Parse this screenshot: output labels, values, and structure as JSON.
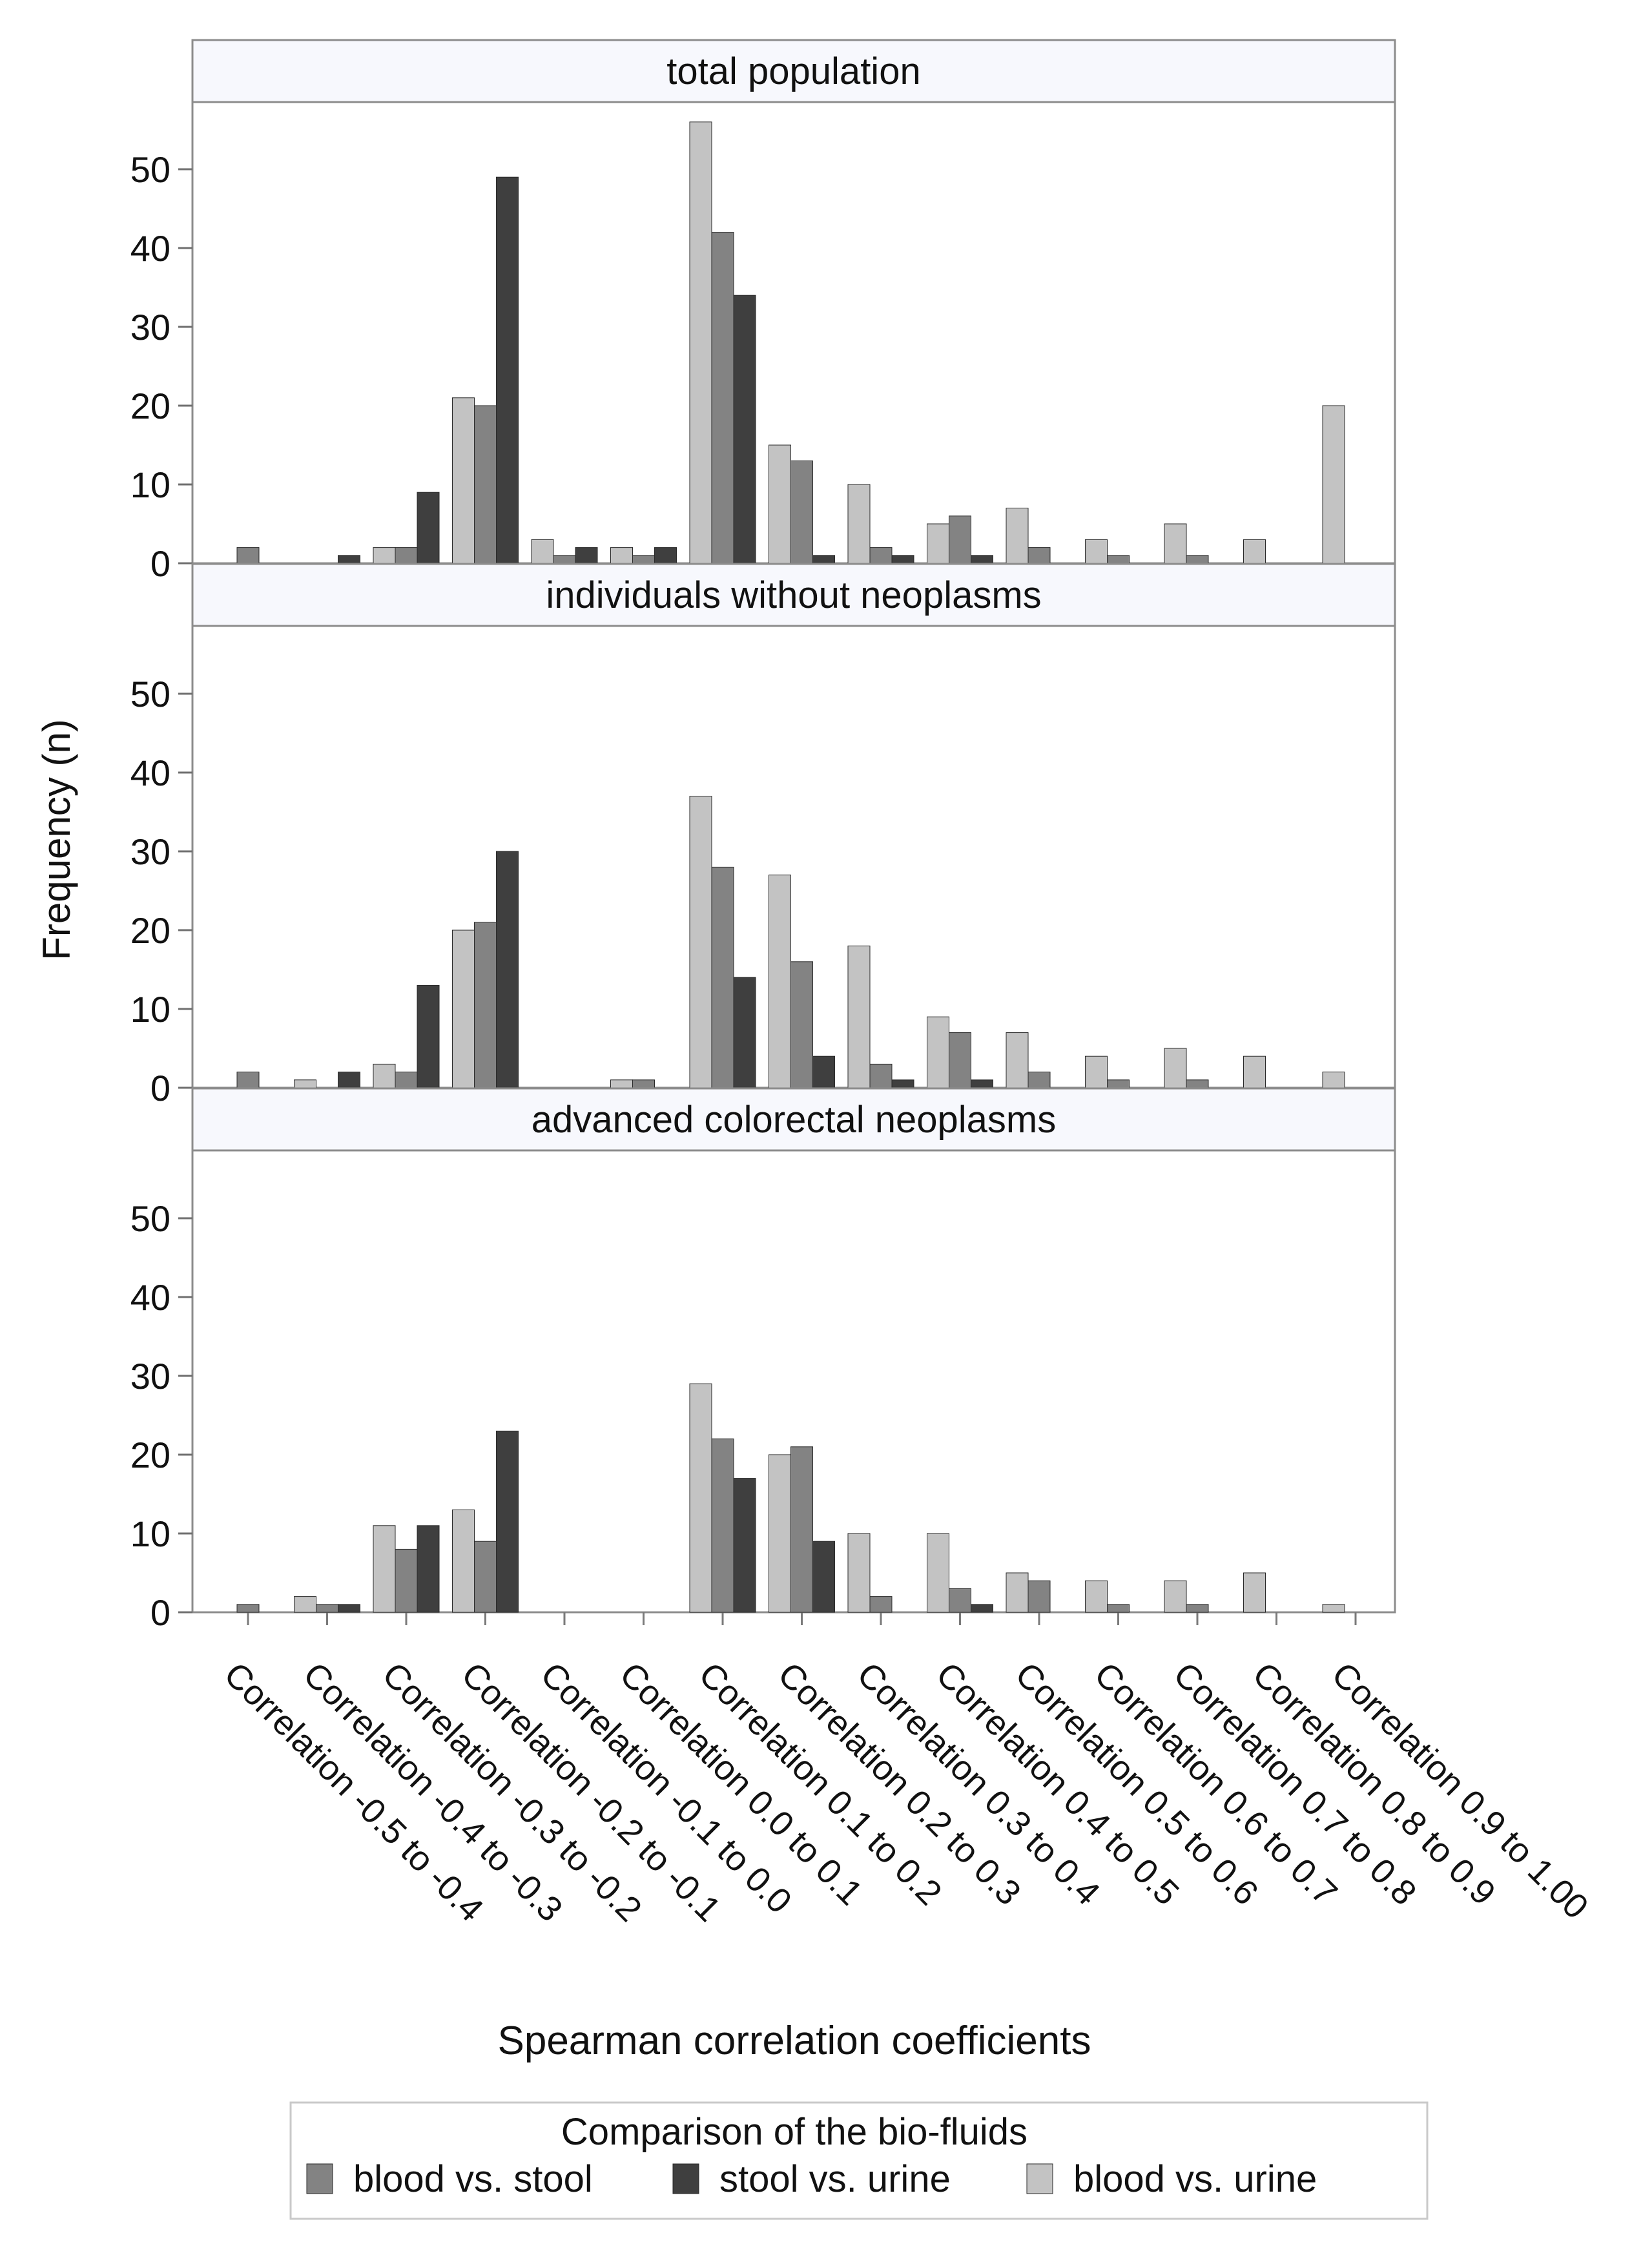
{
  "chart_data": {
    "type": "bar",
    "xlabel": "Spearman correlation coefficients",
    "ylabel": "Frequency (n)",
    "ylim": [
      0,
      58
    ],
    "yticks": [
      0,
      10,
      20,
      30,
      40,
      50
    ],
    "categories": [
      "Correlation -0.5 to -0.4",
      "Correlation -0.4 to -0.3",
      "Correlation -0.3 to -0.2",
      "Correlation -0.2 to -0.1",
      "Correlation -0.1 to 0.0",
      "Correlation 0.0 to 0.1",
      "Correlation 0.1 to 0.2",
      "Correlation 0.2 to 0.3",
      "Correlation 0.3 to 0.4",
      "Correlation 0.4 to 0.5",
      "Correlation 0.5 to 0.6",
      "Correlation 0.6 to 0.7",
      "Correlation 0.7 to 0.8",
      "Correlation 0.8 to 0.9",
      "Correlation 0.9 to 1.00"
    ],
    "series_order": [
      "blood vs. urine",
      "blood vs. stool",
      "stool vs. urine"
    ],
    "colors": {
      "blood vs. urine": "#c3c3c3",
      "blood vs. stool": "#838383",
      "stool vs. urine": "#3f3f3f"
    },
    "legend": {
      "title": "Comparison of the bio-fluids",
      "entries": [
        "blood vs. stool",
        "stool vs. urine",
        "blood vs. urine"
      ],
      "placement": "bottom-center"
    },
    "panels": [
      {
        "title": "total population",
        "series": [
          {
            "name": "blood vs. urine",
            "values": [
              0,
              0,
              2,
              21,
              3,
              2,
              56,
              15,
              10,
              5,
              7,
              3,
              5,
              3,
              20
            ]
          },
          {
            "name": "blood vs. stool",
            "values": [
              2,
              0,
              2,
              20,
              1,
              1,
              42,
              13,
              2,
              6,
              2,
              1,
              1,
              0,
              0
            ]
          },
          {
            "name": "stool vs. urine",
            "values": [
              0,
              1,
              9,
              49,
              2,
              2,
              34,
              1,
              1,
              1,
              0,
              0,
              0,
              0,
              0
            ]
          }
        ]
      },
      {
        "title": "individuals without neoplasms",
        "series": [
          {
            "name": "blood vs. urine",
            "values": [
              0,
              1,
              3,
              20,
              0,
              1,
              37,
              27,
              18,
              9,
              7,
              4,
              5,
              4,
              2
            ]
          },
          {
            "name": "blood vs. stool",
            "values": [
              2,
              0,
              2,
              21,
              0,
              1,
              28,
              16,
              3,
              7,
              2,
              1,
              1,
              0,
              0
            ]
          },
          {
            "name": "stool vs. urine",
            "values": [
              0,
              2,
              13,
              30,
              0,
              0,
              14,
              4,
              1,
              1,
              0,
              0,
              0,
              0,
              0
            ]
          }
        ]
      },
      {
        "title": "advanced colorectal neoplasms",
        "series": [
          {
            "name": "blood vs. urine",
            "values": [
              0,
              2,
              11,
              13,
              0,
              0,
              29,
              20,
              10,
              10,
              5,
              4,
              4,
              5,
              1
            ]
          },
          {
            "name": "blood vs. stool",
            "values": [
              1,
              1,
              8,
              9,
              0,
              0,
              22,
              21,
              2,
              3,
              4,
              1,
              1,
              0,
              0
            ]
          },
          {
            "name": "stool vs. urine",
            "values": [
              0,
              1,
              11,
              23,
              0,
              0,
              17,
              9,
              0,
              1,
              0,
              0,
              0,
              0,
              0
            ]
          }
        ]
      }
    ]
  }
}
